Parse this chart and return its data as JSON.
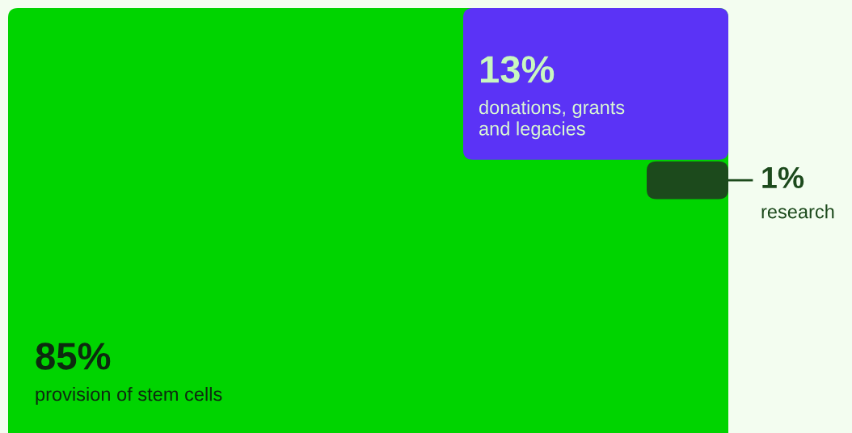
{
  "chart_data": {
    "type": "other",
    "categories": [
      "provision of stem cells",
      "donations, grants\nand legacies",
      "research"
    ],
    "values": [
      85,
      13,
      1
    ],
    "value_labels": [
      "85%",
      "13%",
      "1%"
    ],
    "colors": [
      "#00d400",
      "#5b33f6",
      "#1c4a1c"
    ]
  }
}
